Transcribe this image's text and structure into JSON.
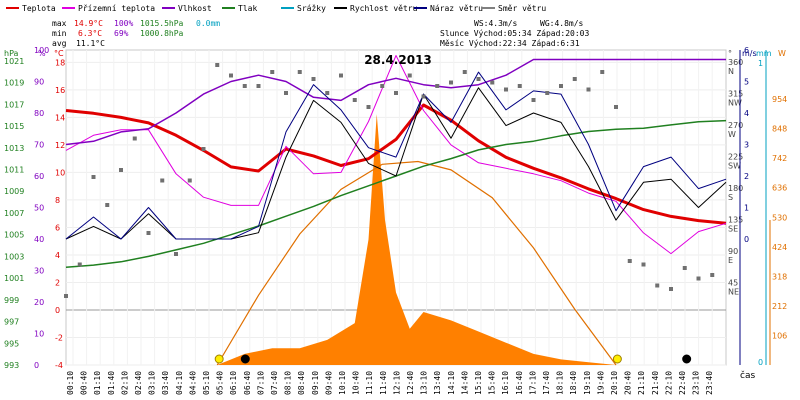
{
  "chart_data": {
    "type": "line",
    "title": "28.4.2013",
    "x_label": "čas",
    "time_ticks": [
      "00:10",
      "00:40",
      "01:10",
      "01:40",
      "02:10",
      "02:40",
      "03:10",
      "03:40",
      "04:10",
      "04:40",
      "05:10",
      "05:40",
      "06:10",
      "06:40",
      "07:10",
      "07:40",
      "08:10",
      "08:40",
      "09:10",
      "09:40",
      "10:10",
      "10:40",
      "11:10",
      "11:40",
      "12:10",
      "12:40",
      "13:10",
      "13:40",
      "14:10",
      "14:40",
      "15:10",
      "15:40",
      "16:10",
      "16:40",
      "17:10",
      "17:40",
      "18:10",
      "18:40",
      "19:10",
      "19:40",
      "20:10",
      "20:40",
      "21:10",
      "21:40",
      "22:10",
      "22:40",
      "23:10",
      "23:40"
    ],
    "legend": [
      {
        "name": "Teplota",
        "color": "#e00000"
      },
      {
        "name": "Přízemní teplota",
        "color": "#e000e0"
      },
      {
        "name": "Vlhkost",
        "color": "#8000c0"
      },
      {
        "name": "Tlak",
        "color": "#208020"
      },
      {
        "name": "Srážky",
        "color": "#00a0c0"
      },
      {
        "name": "Rychlost větru",
        "color": "#000000"
      },
      {
        "name": "Náraz větru",
        "color": "#000080"
      },
      {
        "name": "Směr větru",
        "color": "#808080"
      }
    ],
    "stats": {
      "max": {
        "label": "max",
        "temp": "14.9°C",
        "hum": "100%",
        "press": "1015.5hPa",
        "rain": "0.0mm"
      },
      "min": {
        "label": "min",
        "temp": "6.3°C",
        "hum": "69%",
        "press": "1000.8hPa"
      },
      "avg": {
        "label": "avg",
        "temp": "11.1°C"
      }
    },
    "info": {
      "ws": "WS:4.3m/s",
      "wg": "WG:4.8m/s",
      "sun": "Slunce Východ:05:34  Západ:20:03",
      "moon": "Měsíc  Východ:22:34  Západ:6:31"
    },
    "axes": {
      "hpa_unit": "hPa",
      "hpa_ticks": [
        1021,
        1019,
        1017,
        1015,
        1013,
        1011,
        1009,
        1007,
        1005,
        1003,
        1001,
        999,
        997,
        995,
        993
      ],
      "pct_unit": "%",
      "pct_ticks": [
        100,
        90,
        80,
        70,
        60,
        50,
        40,
        30,
        20,
        10,
        0
      ],
      "temp_unit": "°C",
      "temp_ticks": [
        18,
        16,
        14,
        12,
        10,
        8,
        6,
        4,
        2,
        0,
        -2,
        -4
      ],
      "dir_unit": "°",
      "dir_ticks": [
        {
          "deg": 360,
          "dir": "N"
        },
        {
          "deg": 315,
          "dir": "NW"
        },
        {
          "deg": 270,
          "dir": "W"
        },
        {
          "deg": 225,
          "dir": "SW"
        },
        {
          "deg": 180,
          "dir": "S"
        },
        {
          "deg": 135,
          "dir": "SE"
        },
        {
          "deg": 90,
          "dir": "E"
        },
        {
          "deg": 45,
          "dir": "NE"
        }
      ],
      "ms_unit": "m/s",
      "ms_ticks": [
        6,
        5,
        4,
        3,
        2,
        1,
        0
      ],
      "mm_unit": "mm",
      "mm_ticks": [
        1,
        0
      ],
      "w_unit": "W",
      "w_ticks": [
        954,
        848,
        742,
        636,
        530,
        424,
        318,
        212,
        106
      ]
    },
    "series": [
      {
        "name": "Teplota",
        "unit": "°C",
        "x": [
          0,
          1,
          2,
          3,
          4,
          5,
          6,
          7,
          8,
          9,
          10,
          11,
          12,
          13,
          14,
          15,
          16,
          17,
          18,
          19,
          20,
          21,
          22,
          23,
          24
        ],
        "y": [
          14.5,
          14.3,
          14.0,
          13.6,
          12.7,
          11.6,
          10.4,
          10.1,
          11.7,
          11.2,
          10.5,
          11.0,
          12.4,
          14.9,
          13.8,
          12.3,
          11.1,
          10.3,
          9.6,
          8.8,
          8.1,
          7.3,
          6.8,
          6.5,
          6.3
        ]
      },
      {
        "name": "Přízemní teplota",
        "unit": "°C",
        "x": [
          0,
          1,
          2,
          3,
          4,
          5,
          6,
          7,
          8,
          9,
          10,
          11,
          12,
          13,
          14,
          15,
          16,
          17,
          18,
          19,
          20,
          21,
          22,
          23,
          24
        ],
        "y": [
          11.6,
          12.7,
          13.1,
          13.1,
          9.9,
          8.2,
          7.6,
          7.6,
          11.9,
          9.9,
          10.0,
          13.7,
          18.5,
          14.5,
          12.0,
          10.7,
          10.3,
          9.9,
          9.4,
          8.5,
          7.9,
          5.6,
          4.1,
          5.7,
          6.3
        ]
      },
      {
        "name": "Vlhkost",
        "unit": "%",
        "x": [
          0,
          1,
          2,
          3,
          4,
          5,
          6,
          7,
          8,
          9,
          10,
          11,
          12,
          13,
          14,
          15,
          16,
          17,
          18,
          19,
          20,
          21,
          22,
          23,
          24
        ],
        "y": [
          70,
          71,
          74,
          75,
          80,
          86,
          90,
          92,
          90,
          85,
          84,
          89,
          91,
          89,
          88,
          89,
          92,
          97,
          97,
          97,
          97,
          97,
          97,
          97,
          97
        ]
      },
      {
        "name": "Tlak",
        "unit": "hPa",
        "x": [
          0,
          1,
          2,
          3,
          4,
          5,
          6,
          7,
          8,
          9,
          10,
          11,
          12,
          13,
          14,
          15,
          16,
          17,
          18,
          19,
          20,
          21,
          22,
          23,
          24
        ],
        "y": [
          1002.0,
          1002.2,
          1002.5,
          1003.0,
          1003.6,
          1004.2,
          1005.0,
          1005.8,
          1006.7,
          1007.6,
          1008.6,
          1009.5,
          1010.4,
          1011.3,
          1012.0,
          1012.8,
          1013.3,
          1013.6,
          1014.1,
          1014.5,
          1014.7,
          1014.8,
          1015.1,
          1015.4,
          1015.5
        ]
      },
      {
        "name": "Rychlost větru",
        "unit": "m/s",
        "x": [
          0,
          1,
          2,
          3,
          4,
          5,
          6,
          7,
          8,
          9,
          10,
          11,
          12,
          13,
          14,
          15,
          16,
          17,
          18,
          19,
          20,
          21,
          22,
          23,
          24
        ],
        "y": [
          0.0,
          0.4,
          0.0,
          0.8,
          0.0,
          0.0,
          0.0,
          0.2,
          2.6,
          4.4,
          3.7,
          2.4,
          2.0,
          4.6,
          3.2,
          4.8,
          3.6,
          4.0,
          3.7,
          2.3,
          0.6,
          1.8,
          1.9,
          1.0,
          1.8
        ]
      },
      {
        "name": "Náraz větru",
        "unit": "m/s",
        "x": [
          0,
          1,
          2,
          3,
          4,
          5,
          6,
          7,
          8,
          9,
          10,
          11,
          12,
          13,
          14,
          15,
          16,
          17,
          18,
          19,
          20,
          21,
          22,
          23,
          24
        ],
        "y": [
          0.0,
          0.7,
          0.0,
          1.0,
          0.0,
          0.0,
          0.0,
          0.4,
          3.4,
          4.9,
          4.1,
          2.9,
          2.6,
          4.6,
          3.7,
          5.3,
          4.1,
          4.7,
          4.6,
          3.0,
          0.9,
          2.3,
          2.6,
          1.6,
          1.9
        ]
      },
      {
        "name": "Solar",
        "unit": "W",
        "x": [
          0,
          5.5,
          6.5,
          7.5,
          8.5,
          9.5,
          10.5,
          11,
          11.3,
          11.6,
          12,
          12.5,
          13,
          14,
          15,
          16,
          17,
          18,
          19,
          20,
          24
        ],
        "y": [
          0,
          0,
          40,
          60,
          60,
          90,
          150,
          450,
          900,
          520,
          260,
          130,
          190,
          160,
          120,
          80,
          40,
          20,
          10,
          0,
          0
        ]
      },
      {
        "name": "Solar theoretical",
        "unit": "W",
        "x": [
          5.5,
          7,
          8.5,
          10,
          11.5,
          12.8,
          14,
          15.5,
          17,
          18.5,
          20
        ],
        "y": [
          0,
          250,
          470,
          630,
          720,
          730,
          700,
          600,
          420,
          200,
          0
        ]
      },
      {
        "name": "Směr větru",
        "unit": "°",
        "x": [
          0,
          0.5,
          1,
          1.5,
          2,
          2.5,
          3,
          3.5,
          4,
          4.5,
          5,
          5.5,
          6,
          6.5,
          7,
          7.5,
          8,
          8.5,
          9,
          9.5,
          10,
          10.5,
          11,
          11.5,
          12,
          12.5,
          13,
          13.5,
          14,
          14.5,
          15,
          15.5,
          16,
          16.5,
          17,
          17.5,
          18,
          18.5,
          19,
          19.5,
          20,
          20.5,
          21,
          21.5,
          22,
          22.5,
          23,
          23.5
        ],
        "y": [
          30,
          75,
          200,
          160,
          210,
          255,
          120,
          195,
          90,
          195,
          240,
          360,
          345,
          330,
          330,
          350,
          320,
          350,
          340,
          320,
          345,
          310,
          300,
          330,
          320,
          345,
          315,
          330,
          335,
          350,
          340,
          335,
          325,
          330,
          310,
          320,
          330,
          340,
          325,
          350,
          300,
          80,
          75,
          45,
          40,
          70,
          55,
          60
        ]
      }
    ],
    "markers": [
      {
        "name": "sunrise",
        "time": 5.57
      },
      {
        "name": "sunset",
        "time": 20.05
      },
      {
        "name": "moonrise",
        "time": 22.57
      },
      {
        "name": "moonset",
        "time": 6.52
      }
    ]
  }
}
